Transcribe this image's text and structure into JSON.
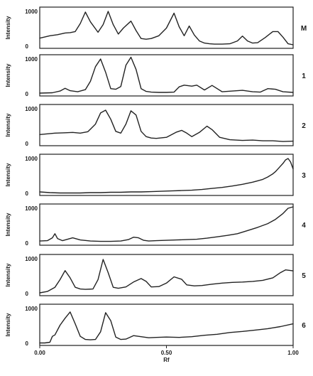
{
  "chart_data": {
    "type": "line",
    "title": "",
    "xlabel": "Rf",
    "ylabel": "Intensity",
    "xlim": [
      0,
      1
    ],
    "ylim": [
      0,
      1000
    ],
    "xticks": [
      "0.00",
      "0.50",
      "1.00"
    ],
    "yticks": [
      "0",
      "1000"
    ],
    "grid": false,
    "legend": "none",
    "line_color": "#222222",
    "panels": [
      {
        "label": "M",
        "x": [
          0.0,
          0.04,
          0.07,
          0.1,
          0.12,
          0.14,
          0.16,
          0.18,
          0.2,
          0.23,
          0.25,
          0.27,
          0.29,
          0.31,
          0.33,
          0.36,
          0.38,
          0.4,
          0.42,
          0.44,
          0.47,
          0.5,
          0.53,
          0.55,
          0.57,
          0.59,
          0.61,
          0.63,
          0.65,
          0.67,
          0.69,
          0.72,
          0.75,
          0.78,
          0.8,
          0.82,
          0.84,
          0.86,
          0.89,
          0.92,
          0.94,
          0.96,
          0.98,
          1.0
        ],
        "y": [
          230,
          300,
          330,
          380,
          390,
          420,
          650,
          980,
          700,
          400,
          620,
          1000,
          620,
          350,
          520,
          720,
          450,
          220,
          200,
          220,
          300,
          520,
          950,
          560,
          300,
          580,
          320,
          150,
          90,
          70,
          60,
          60,
          70,
          150,
          290,
          150,
          90,
          100,
          250,
          420,
          420,
          260,
          70,
          40
        ]
      },
      {
        "label": "1",
        "x": [
          0.0,
          0.05,
          0.08,
          0.1,
          0.12,
          0.15,
          0.18,
          0.2,
          0.22,
          0.24,
          0.26,
          0.28,
          0.3,
          0.32,
          0.34,
          0.36,
          0.38,
          0.4,
          0.42,
          0.44,
          0.47,
          0.5,
          0.53,
          0.55,
          0.57,
          0.6,
          0.62,
          0.65,
          0.68,
          0.72,
          0.76,
          0.8,
          0.84,
          0.87,
          0.9,
          0.93,
          0.96,
          1.0
        ],
        "y": [
          20,
          30,
          80,
          160,
          90,
          60,
          120,
          360,
          780,
          1000,
          620,
          150,
          130,
          210,
          820,
          1050,
          700,
          150,
          70,
          50,
          40,
          40,
          50,
          200,
          250,
          220,
          250,
          110,
          240,
          60,
          80,
          100,
          60,
          50,
          150,
          130,
          60,
          40
        ]
      },
      {
        "label": "2",
        "x": [
          0.0,
          0.03,
          0.06,
          0.1,
          0.13,
          0.16,
          0.19,
          0.22,
          0.24,
          0.26,
          0.28,
          0.3,
          0.32,
          0.34,
          0.36,
          0.38,
          0.4,
          0.42,
          0.44,
          0.46,
          0.5,
          0.54,
          0.56,
          0.58,
          0.6,
          0.63,
          0.66,
          0.68,
          0.71,
          0.75,
          0.8,
          0.84,
          0.88,
          0.92,
          0.96,
          1.0
        ],
        "y": [
          260,
          280,
          300,
          310,
          320,
          300,
          340,
          560,
          880,
          960,
          700,
          350,
          300,
          560,
          940,
          820,
          350,
          200,
          160,
          150,
          180,
          330,
          380,
          300,
          200,
          320,
          500,
          400,
          180,
          110,
          90,
          100,
          80,
          80,
          60,
          70
        ]
      },
      {
        "label": "3",
        "x": [
          0.0,
          0.04,
          0.08,
          0.12,
          0.16,
          0.2,
          0.24,
          0.28,
          0.32,
          0.36,
          0.4,
          0.44,
          0.48,
          0.52,
          0.56,
          0.6,
          0.64,
          0.68,
          0.72,
          0.76,
          0.8,
          0.84,
          0.86,
          0.88,
          0.9,
          0.92,
          0.93,
          0.94,
          0.95,
          0.96,
          0.97,
          0.98,
          0.99,
          1.0
        ],
        "y": [
          40,
          20,
          10,
          10,
          10,
          20,
          20,
          30,
          30,
          40,
          40,
          50,
          60,
          70,
          80,
          90,
          110,
          140,
          170,
          210,
          260,
          320,
          360,
          400,
          470,
          560,
          620,
          700,
          780,
          860,
          960,
          1000,
          900,
          700
        ]
      },
      {
        "label": "4",
        "x": [
          0.0,
          0.03,
          0.05,
          0.06,
          0.07,
          0.09,
          0.11,
          0.13,
          0.16,
          0.2,
          0.24,
          0.28,
          0.32,
          0.35,
          0.37,
          0.39,
          0.41,
          0.43,
          0.46,
          0.5,
          0.54,
          0.58,
          0.62,
          0.66,
          0.7,
          0.74,
          0.78,
          0.82,
          0.86,
          0.9,
          0.93,
          0.96,
          0.98,
          1.0
        ],
        "y": [
          60,
          70,
          150,
          270,
          130,
          70,
          110,
          150,
          90,
          60,
          50,
          50,
          60,
          100,
          170,
          150,
          80,
          60,
          70,
          80,
          90,
          100,
          110,
          140,
          180,
          220,
          270,
          360,
          450,
          560,
          680,
          850,
          1000,
          1040
        ]
      },
      {
        "label": "5",
        "x": [
          0.0,
          0.03,
          0.06,
          0.08,
          0.1,
          0.12,
          0.14,
          0.16,
          0.18,
          0.21,
          0.23,
          0.25,
          0.27,
          0.29,
          0.31,
          0.34,
          0.37,
          0.4,
          0.42,
          0.44,
          0.47,
          0.5,
          0.53,
          0.56,
          0.58,
          0.61,
          0.64,
          0.68,
          0.72,
          0.76,
          0.8,
          0.84,
          0.88,
          0.92,
          0.95,
          0.97,
          1.0
        ],
        "y": [
          20,
          60,
          180,
          400,
          660,
          450,
          180,
          130,
          120,
          130,
          400,
          980,
          600,
          180,
          150,
          190,
          330,
          430,
          350,
          190,
          200,
          300,
          480,
          410,
          250,
          220,
          230,
          270,
          300,
          320,
          330,
          350,
          380,
          450,
          600,
          680,
          650
        ]
      },
      {
        "label": "6",
        "x": [
          0.0,
          0.02,
          0.04,
          0.05,
          0.06,
          0.08,
          0.1,
          0.12,
          0.14,
          0.16,
          0.18,
          0.2,
          0.22,
          0.24,
          0.26,
          0.28,
          0.3,
          0.32,
          0.34,
          0.37,
          0.4,
          0.43,
          0.46,
          0.5,
          0.55,
          0.6,
          0.65,
          0.7,
          0.75,
          0.8,
          0.85,
          0.9,
          0.95,
          1.0
        ],
        "y": [
          10,
          10,
          30,
          200,
          240,
          520,
          720,
          900,
          560,
          200,
          110,
          100,
          110,
          330,
          880,
          650,
          180,
          110,
          120,
          220,
          190,
          160,
          170,
          180,
          170,
          190,
          230,
          260,
          310,
          340,
          380,
          420,
          480,
          560
        ]
      }
    ]
  }
}
